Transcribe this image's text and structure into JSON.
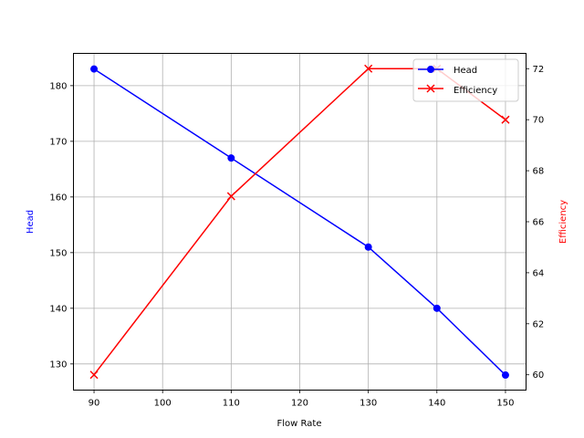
{
  "chart_data": {
    "type": "line",
    "title": "",
    "x": [
      90,
      110,
      130,
      140,
      150
    ],
    "xlabel": "Flow Rate",
    "xlim": [
      87,
      153
    ],
    "xticks": [
      90,
      100,
      110,
      120,
      130,
      140,
      150
    ],
    "grid": true,
    "legend_position": "upper right",
    "series": [
      {
        "name": "Head",
        "axis": "left",
        "color": "#0000ff",
        "marker": "circle",
        "values": [
          183,
          167,
          151,
          140,
          128
        ]
      },
      {
        "name": "Efficiency",
        "axis": "right",
        "color": "#ff0000",
        "marker": "x",
        "values": [
          60,
          67,
          72,
          72,
          70
        ]
      }
    ],
    "ylabel": "Head",
    "ylabel_color": "#0000ff",
    "ylim": [
      125.3,
      185.8
    ],
    "yticks": [
      130,
      140,
      150,
      160,
      170,
      180
    ],
    "y2label": "Efficiency",
    "y2label_color": "#ff0000",
    "y2lim": [
      59.4,
      72.6
    ],
    "y2ticks": [
      60,
      62,
      64,
      66,
      68,
      70,
      72
    ]
  }
}
